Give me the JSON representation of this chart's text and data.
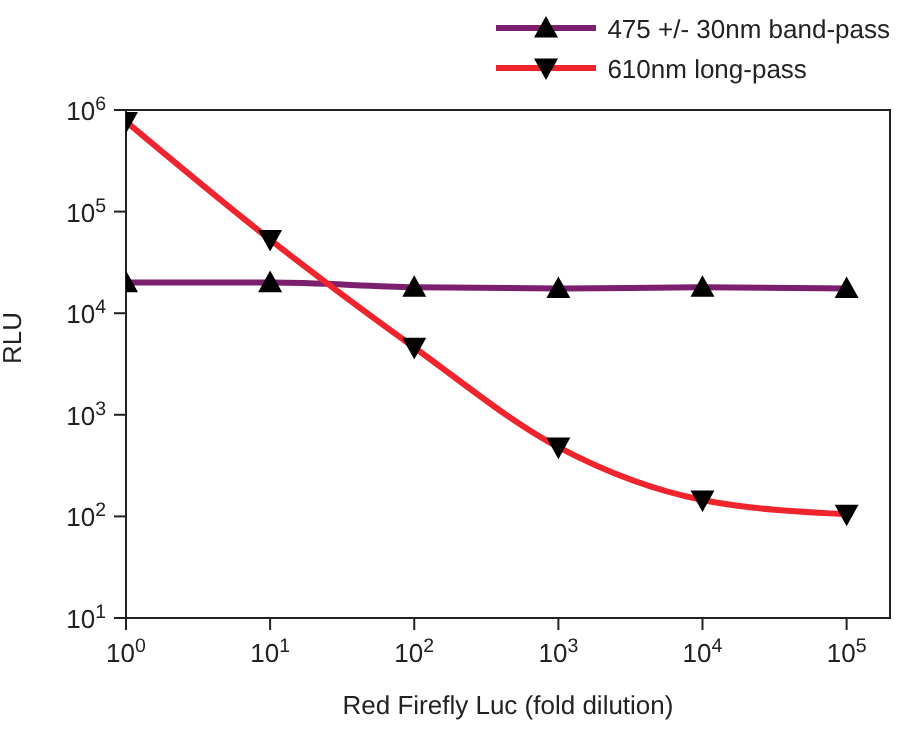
{
  "chart_data": {
    "type": "line",
    "xlabel": "Red Firefly Luc (fold dilution)",
    "ylabel": "RLU",
    "log": "xy",
    "grid": false,
    "legend": "top right",
    "x": [
      1,
      10,
      100,
      1000,
      10000,
      100000
    ],
    "xlim": [
      1,
      200000
    ],
    "xticks": [
      {
        "value": 1,
        "label": "10$^{0}$"
      },
      {
        "value": 10,
        "label": "10$^{1}$"
      },
      {
        "value": 100,
        "label": "10$^{2}$"
      },
      {
        "value": 1000,
        "label": "10$^{3}$"
      },
      {
        "value": 10000,
        "label": "10$^{4}$"
      },
      {
        "value": 100000,
        "label": "10$^{5}$"
      }
    ],
    "ylim": [
      10,
      1000000
    ],
    "yticks": [
      {
        "value": 10,
        "label": "10$^{1}$"
      },
      {
        "value": 100,
        "label": "10$^{2}$"
      },
      {
        "value": 1000,
        "label": "10$^{3}$"
      },
      {
        "value": 10000,
        "label": "10$^{4}$"
      },
      {
        "value": 100000,
        "label": "10$^{5}$"
      },
      {
        "value": 1000000,
        "label": "10$^{6}$"
      }
    ],
    "line_style": "solid",
    "series": [
      {
        "name": "475 +/- 30nm band-pass",
        "color": "#7b1f6e",
        "marker": "triangle",
        "values": [
          20000,
          20000,
          18000,
          17500,
          18000,
          17500
        ]
      },
      {
        "name": "610nm long-pass",
        "color": "#f0242c",
        "marker": "triangle-down",
        "values": [
          770000,
          53000,
          4600,
          480,
          145,
          105
        ]
      }
    ]
  }
}
